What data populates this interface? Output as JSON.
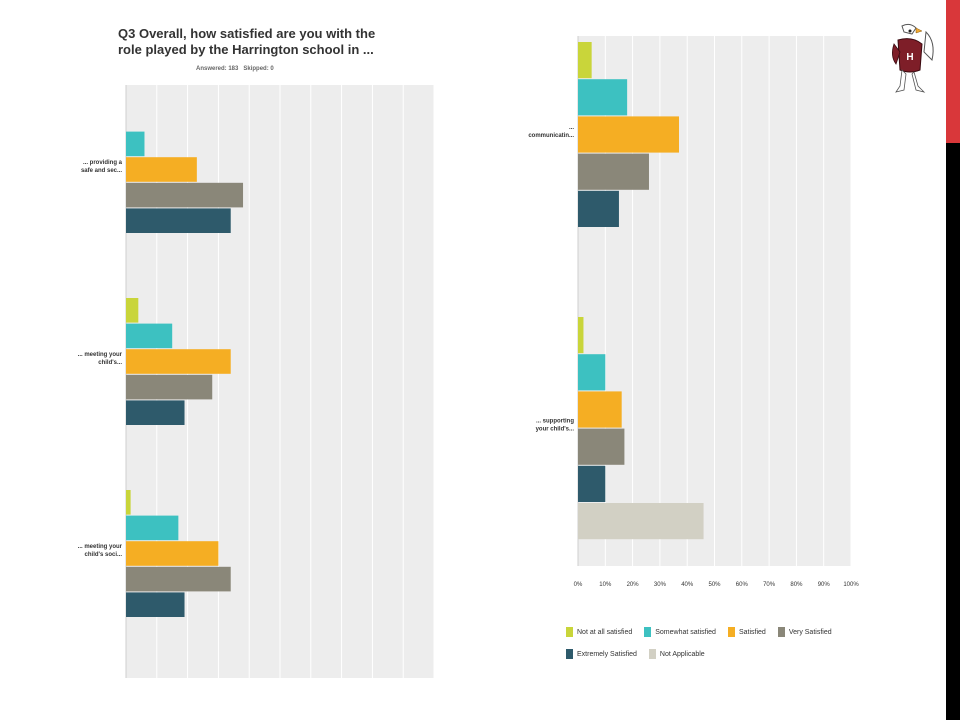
{
  "header": {
    "title": "Q3 Overall, how satisfied are you with the role played by the Harrington school in ...",
    "meta": "Answered: 183   Skipped: 0"
  },
  "brand": {
    "accent": "#D9373A"
  },
  "chart_data": {
    "type": "bar",
    "orientation": "horizontal",
    "x_ticks": [
      "0%",
      "10%",
      "20%",
      "30%",
      "40%",
      "50%",
      "60%",
      "70%",
      "80%",
      "90%",
      "100%"
    ],
    "xlim": [
      0,
      100
    ],
    "grid": true,
    "legend_position": "bottom",
    "series": [
      {
        "name": "Not at all satisfied",
        "color": "#C9D53A"
      },
      {
        "name": "Somewhat satisfied",
        "color": "#3DC1C1"
      },
      {
        "name": "Satisfied",
        "color": "#F5AE23"
      },
      {
        "name": "Very Satisfied",
        "color": "#8A8779"
      },
      {
        "name": "Extremely Satisfied",
        "color": "#2E5A6B"
      },
      {
        "name": "Not Applicable",
        "color": "#D2D0C4"
      }
    ],
    "panels": [
      {
        "id": "left",
        "categories": [
          {
            "label": [
              "... providing a",
              "safe and sec..."
            ],
            "values": [
              0,
              6,
              23,
              38,
              34
            ]
          },
          {
            "label": [
              "... meeting your",
              "child's..."
            ],
            "values": [
              4,
              15,
              34,
              28,
              19
            ]
          },
          {
            "label": [
              "... meeting your",
              "child's soci..."
            ],
            "values": [
              1.5,
              17,
              30,
              34,
              19
            ]
          }
        ]
      },
      {
        "id": "right",
        "categories": [
          {
            "label": [
              "...",
              "communicatin..."
            ],
            "values": [
              5,
              18,
              37,
              26,
              15
            ]
          },
          {
            "label": [
              "... supporting",
              "your child's..."
            ],
            "values": [
              2,
              10,
              16,
              17,
              10,
              46
            ]
          }
        ]
      }
    ]
  }
}
